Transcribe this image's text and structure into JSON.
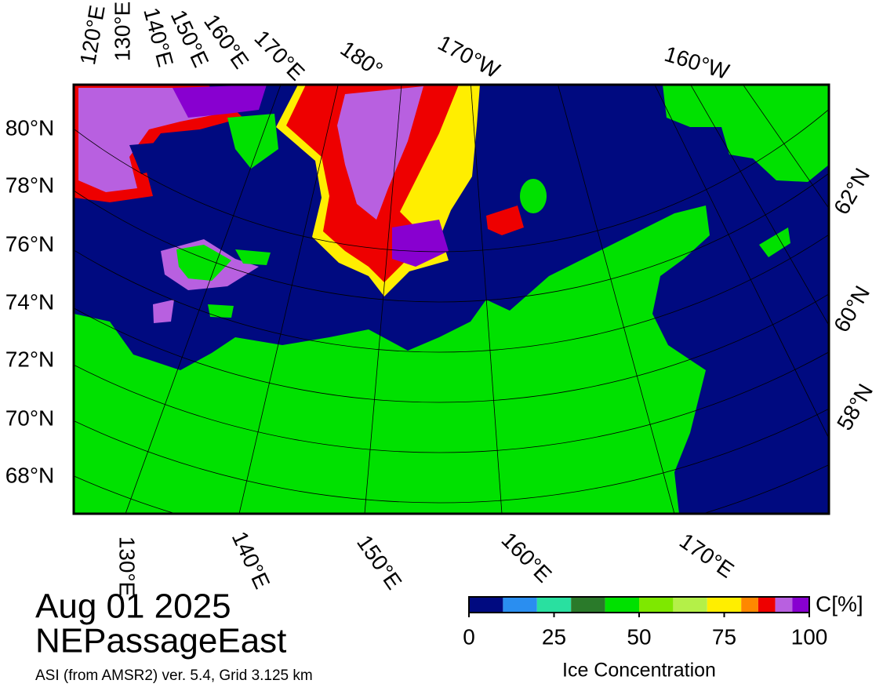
{
  "map": {
    "date": "Aug 01 2025",
    "region": "NEPassageEast",
    "source": "ASI (from AMSR2) ver. 5.4,  Grid 3.125 km",
    "top_labels": [
      "120°E",
      "130°E",
      "140°E",
      "150°E",
      "160°E",
      "170°E",
      "180°",
      "170°W",
      "160°W"
    ],
    "left_labels": [
      "80°N",
      "78°N",
      "76°N",
      "74°N",
      "72°N",
      "70°N",
      "68°N"
    ],
    "right_labels": [
      "62°N",
      "60°N",
      "58°N"
    ],
    "bottom_labels": [
      "130°E",
      "140°E",
      "150°E",
      "160°E",
      "170°E"
    ]
  },
  "colorbar": {
    "title": "Ice Concentration",
    "unit": "C[%]",
    "range": [
      0,
      100
    ],
    "ticks": [
      0,
      25,
      50,
      75,
      100
    ],
    "bounds": [
      0,
      10,
      20,
      30,
      40,
      50,
      60,
      70,
      80,
      85,
      90,
      95,
      100
    ],
    "colors": [
      "#000a80",
      "#2a8ef0",
      "#29e0a0",
      "#2a7a2a",
      "#00e100",
      "#7ee800",
      "#b4f048",
      "#ffee00",
      "#ff8800",
      "#ee0000",
      "#b860e0",
      "#8800d0"
    ]
  }
}
